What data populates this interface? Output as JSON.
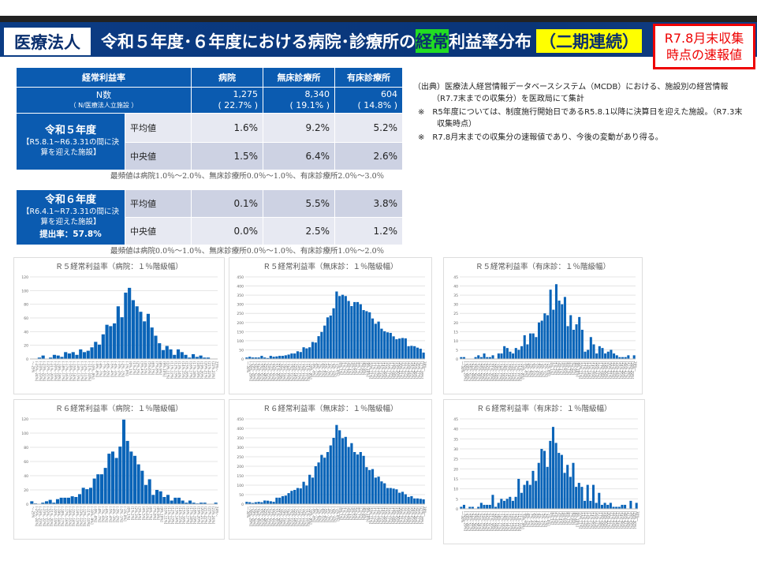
{
  "header": {
    "org": "医療法人",
    "title_pre": "令和５年度･６年度における病院･診療所の",
    "title_hl": "経常",
    "title_post": "利益率分布",
    "title_tag": "（二期連続）",
    "flash_line1": "R7.8月末収集",
    "flash_line2": "時点の速報値"
  },
  "table": {
    "head": [
      "経常利益率",
      "病院",
      "無床診療所",
      "有床診療所"
    ],
    "n_label": "N数",
    "n_sub": "（ N/医療法人立施設 ）",
    "n_values": [
      [
        "1,275",
        "( 22.7% )"
      ],
      [
        "8,340",
        "( 19.1% )"
      ],
      [
        "604",
        "( 14.8% )"
      ]
    ],
    "r5": {
      "title": "令和５年度",
      "sub": "【R5.8.1~R6.3.31の間に決算を迎えた施設】",
      "avg_label": "平均値",
      "avg": [
        "1.6%",
        "9.2%",
        "5.2%"
      ],
      "med_label": "中央値",
      "med": [
        "1.5%",
        "6.4%",
        "2.6%"
      ],
      "mode_note": "最頻値は病院1.0％～2.0％、無床診療所0.0％～1.0％、有床診療所2.0％～3.0％"
    },
    "r6": {
      "title": "令和６年度",
      "sub": "【R6.4.1~R7.3.31の間に決算を迎えた施設】",
      "rate": "提出率：57.8%",
      "avg_label": "平均値",
      "avg": [
        "0.1%",
        "5.5%",
        "3.8%"
      ],
      "med_label": "中央値",
      "med": [
        "0.0%",
        "2.5%",
        "1.2%"
      ],
      "mode_note": "最頻値は病院0.0％～1.0％、無床診療所0.0％～1.0％、有床診療所1.0％～2.0％"
    }
  },
  "notes": [
    "（出典）医療法人経営情報データベースシステム（MCDB）における、施設別の経営情報（R7.7末までの収集分）を医政局にて集計",
    "※　R5年度については、制度施行開始日であるR5.8.1以降に決算日を迎えた施設。（R7.3末収集時点）",
    "※　R7.8月末までの収集分の速報値であり、今後の変動があり得る。"
  ],
  "colors": {
    "bar": "#0a64b8",
    "header": "#0b3c84"
  },
  "chart_data": [
    {
      "type": "bar",
      "title": "Ｒ５経常利益率（病院：１％階級幅）",
      "x_range": [
        -25,
        25
      ],
      "ylim": [
        0,
        120
      ],
      "yticks": [
        0,
        20,
        40,
        60,
        80,
        100,
        120
      ],
      "values": [
        0,
        0,
        2,
        5,
        0,
        2,
        6,
        5,
        3,
        10,
        8,
        10,
        6,
        14,
        10,
        12,
        17,
        25,
        21,
        36,
        50,
        48,
        52,
        77,
        61,
        97,
        104,
        86,
        77,
        69,
        55,
        66,
        46,
        34,
        23,
        13,
        19,
        14,
        6,
        14,
        10,
        6,
        2,
        7,
        3,
        5,
        2,
        2,
        0,
        0
      ]
    },
    {
      "type": "bar",
      "title": "Ｒ５経常利益率（無床診：１％階級幅）",
      "x_range": [
        -30,
        30
      ],
      "ylim": [
        0,
        450
      ],
      "yticks": [
        0,
        50,
        100,
        150,
        200,
        250,
        300,
        350,
        400,
        450
      ],
      "values": [
        8,
        12,
        8,
        8,
        8,
        17,
        8,
        5,
        17,
        12,
        14,
        17,
        17,
        20,
        24,
        30,
        30,
        42,
        38,
        64,
        58,
        64,
        93,
        90,
        125,
        148,
        183,
        228,
        238,
        278,
        370,
        345,
        352,
        345,
        318,
        290,
        312,
        312,
        300,
        268,
        262,
        256,
        222,
        193,
        205,
        166,
        152,
        146,
        143,
        124,
        108,
        112,
        115,
        113,
        70,
        72,
        70,
        62,
        56,
        35
      ]
    },
    {
      "type": "bar",
      "title": "Ｒ５経常利益率（有床診：１％階級幅）",
      "x_range": [
        -30,
        30
      ],
      "ylim": [
        0,
        45
      ],
      "yticks": [
        0,
        5,
        10,
        15,
        20,
        25,
        30,
        35,
        40,
        45
      ],
      "values": [
        1,
        1,
        0,
        0,
        0,
        1,
        2,
        1,
        3,
        1,
        1,
        2,
        0,
        3,
        3,
        7,
        6,
        4,
        3,
        6,
        5,
        7,
        13,
        8,
        14,
        14,
        12,
        20,
        21,
        25,
        24,
        38,
        27,
        41,
        32,
        30,
        34,
        18,
        24,
        16,
        19,
        23,
        16,
        4,
        5,
        12,
        8,
        3,
        7,
        6,
        3,
        4,
        5,
        3,
        2,
        1,
        1,
        1,
        2,
        0,
        2
      ]
    },
    {
      "type": "bar",
      "title": "Ｒ６経常利益率（病院：１％階級幅）",
      "x_range": [
        -25,
        25
      ],
      "ylim": [
        0,
        120
      ],
      "yticks": [
        0,
        20,
        40,
        60,
        80,
        100,
        120
      ],
      "values": [
        4,
        1,
        0,
        2,
        4,
        6,
        2,
        7,
        9,
        9,
        9,
        11,
        10,
        14,
        23,
        21,
        23,
        36,
        42,
        42,
        51,
        71,
        74,
        65,
        81,
        119,
        89,
        74,
        68,
        56,
        47,
        27,
        35,
        13,
        20,
        18,
        10,
        13,
        5,
        9,
        9,
        5,
        2,
        5,
        2,
        1,
        2,
        2,
        0,
        0,
        2
      ]
    },
    {
      "type": "bar",
      "title": "Ｒ６経常利益率（無床診：１％階級幅）",
      "x_range": [
        -30,
        30
      ],
      "ylim": [
        0,
        450
      ],
      "yticks": [
        0,
        50,
        100,
        150,
        200,
        250,
        300,
        350,
        400,
        450
      ],
      "values": [
        12,
        10,
        6,
        10,
        12,
        10,
        19,
        18,
        15,
        12,
        34,
        34,
        42,
        45,
        58,
        70,
        75,
        85,
        83,
        118,
        98,
        155,
        140,
        200,
        220,
        260,
        245,
        275,
        310,
        350,
        418,
        390,
        348,
        355,
        302,
        322,
        275,
        262,
        275,
        255,
        195,
        180,
        185,
        140,
        145,
        120,
        110,
        85,
        85,
        82,
        78,
        60,
        65,
        52,
        38,
        42,
        30,
        30,
        28,
        25
      ]
    },
    {
      "type": "bar",
      "title": "Ｒ６経常利益率（有床診：１％階級幅）",
      "x_range": [
        -30,
        30
      ],
      "ylim": [
        0,
        45
      ],
      "yticks": [
        0,
        5,
        10,
        15,
        20,
        25,
        30,
        35,
        40,
        45
      ],
      "values": [
        1,
        2,
        0,
        1,
        1,
        0,
        1,
        3,
        2,
        2,
        2,
        7,
        1,
        3,
        5,
        4,
        5,
        6,
        4,
        6,
        15,
        8,
        12,
        14,
        12,
        19,
        14,
        23,
        30,
        29,
        21,
        34,
        41,
        33,
        28,
        27,
        18,
        22,
        16,
        23,
        11,
        13,
        11,
        4,
        12,
        4,
        12,
        3,
        8,
        2,
        3,
        2,
        3,
        1,
        1,
        1,
        2,
        2,
        0,
        4,
        0,
        3
      ]
    }
  ]
}
